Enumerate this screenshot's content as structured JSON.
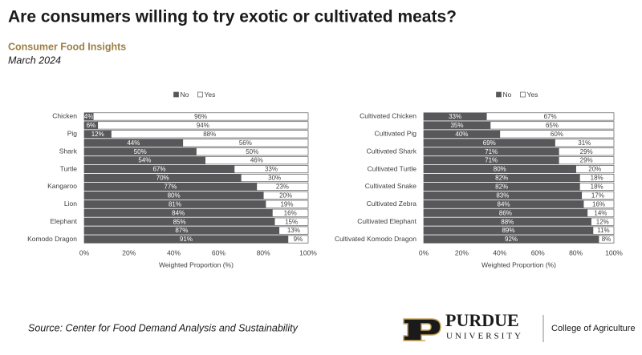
{
  "header": {
    "title": "Are consumers willing to try exotic or cultivated meats?",
    "subtitle": "Consumer Food Insights",
    "date": "March 2024"
  },
  "footer": {
    "source": "Source:  Center for Food Demand Analysis and Sustainability",
    "logo_name": "PURDUE",
    "logo_sub": "UNIVERSITY",
    "logo_unit": "College of Agriculture"
  },
  "chart_data": [
    {
      "type": "bar",
      "orientation": "horizontal",
      "stacked": true,
      "xlabel": "Weighted Proportion (%)",
      "categories": [
        "Chicken",
        null,
        "Pig",
        null,
        "Shark",
        null,
        "Turtle",
        null,
        "Kangaroo",
        null,
        "Lion",
        null,
        "Elephant",
        null,
        "Komodo Dragon"
      ],
      "series": [
        {
          "name": "No",
          "color": "#58585a",
          "values": [
            4,
            6,
            12,
            44,
            50,
            54,
            67,
            70,
            77,
            80,
            81,
            84,
            85,
            87,
            91
          ],
          "value_labels": [
            "4%",
            "6%",
            "12%",
            "44%",
            "50%",
            "54%",
            "67%",
            "70%",
            "77%",
            "80%",
            "81%",
            "84%",
            "85%",
            "87%",
            "91%"
          ]
        },
        {
          "name": "Yes",
          "color": "#ffffff",
          "values": [
            96,
            94,
            88,
            56,
            50,
            46,
            33,
            30,
            23,
            20,
            19,
            16,
            15,
            13,
            9
          ],
          "value_labels": [
            "96%",
            "94%",
            "88%",
            "56%",
            "50%",
            "46%",
            "33%",
            "30%",
            "23%",
            "20%",
            "19%",
            "16%",
            "15%",
            "13%",
            "9%"
          ]
        }
      ],
      "xlim": [
        0,
        100
      ],
      "xticks": [
        {
          "value": 0,
          "label": "0%"
        },
        {
          "value": 20,
          "label": "20%"
        },
        {
          "value": 40,
          "label": "40%"
        },
        {
          "value": 60,
          "label": "60%"
        },
        {
          "value": 80,
          "label": "80%"
        },
        {
          "value": 100,
          "label": "100%"
        }
      ],
      "legend": "top"
    },
    {
      "type": "bar",
      "orientation": "horizontal",
      "stacked": true,
      "xlabel": "Weighted Proportion (%)",
      "categories": [
        "Cultivated Chicken",
        null,
        "Cultivated Pig",
        null,
        "Cultivated Shark",
        null,
        "Cultivated Turtle",
        null,
        "Cultivated Snake",
        null,
        "Cultivated Zebra",
        null,
        "Cultivated Elephant",
        null,
        "Cultivated Komodo Dragon"
      ],
      "series": [
        {
          "name": "No",
          "color": "#58585a",
          "values": [
            33,
            35,
            40,
            69,
            71,
            71,
            80,
            82,
            82,
            83,
            84,
            86,
            88,
            89,
            92
          ],
          "value_labels": [
            "33%",
            "35%",
            "40%",
            "69%",
            "71%",
            "71%",
            "80%",
            "82%",
            "82%",
            "83%",
            "84%",
            "86%",
            "88%",
            "89%",
            "92%"
          ]
        },
        {
          "name": "Yes",
          "color": "#ffffff",
          "values": [
            67,
            65,
            60,
            31,
            29,
            29,
            20,
            18,
            18,
            17,
            16,
            14,
            12,
            11,
            8
          ],
          "value_labels": [
            "67%",
            "65%",
            "60%",
            "31%",
            "29%",
            "29%",
            "20%",
            "18%",
            "18%",
            "17%",
            "16%",
            "14%",
            "12%",
            "11%",
            "8%"
          ]
        }
      ],
      "xlim": [
        0,
        100
      ],
      "xticks": [
        {
          "value": 0,
          "label": "0%"
        },
        {
          "value": 20,
          "label": "20%"
        },
        {
          "value": 40,
          "label": "40%"
        },
        {
          "value": 60,
          "label": "60%"
        },
        {
          "value": 80,
          "label": "80%"
        },
        {
          "value": 100,
          "label": "100%"
        }
      ],
      "legend": "top"
    }
  ]
}
